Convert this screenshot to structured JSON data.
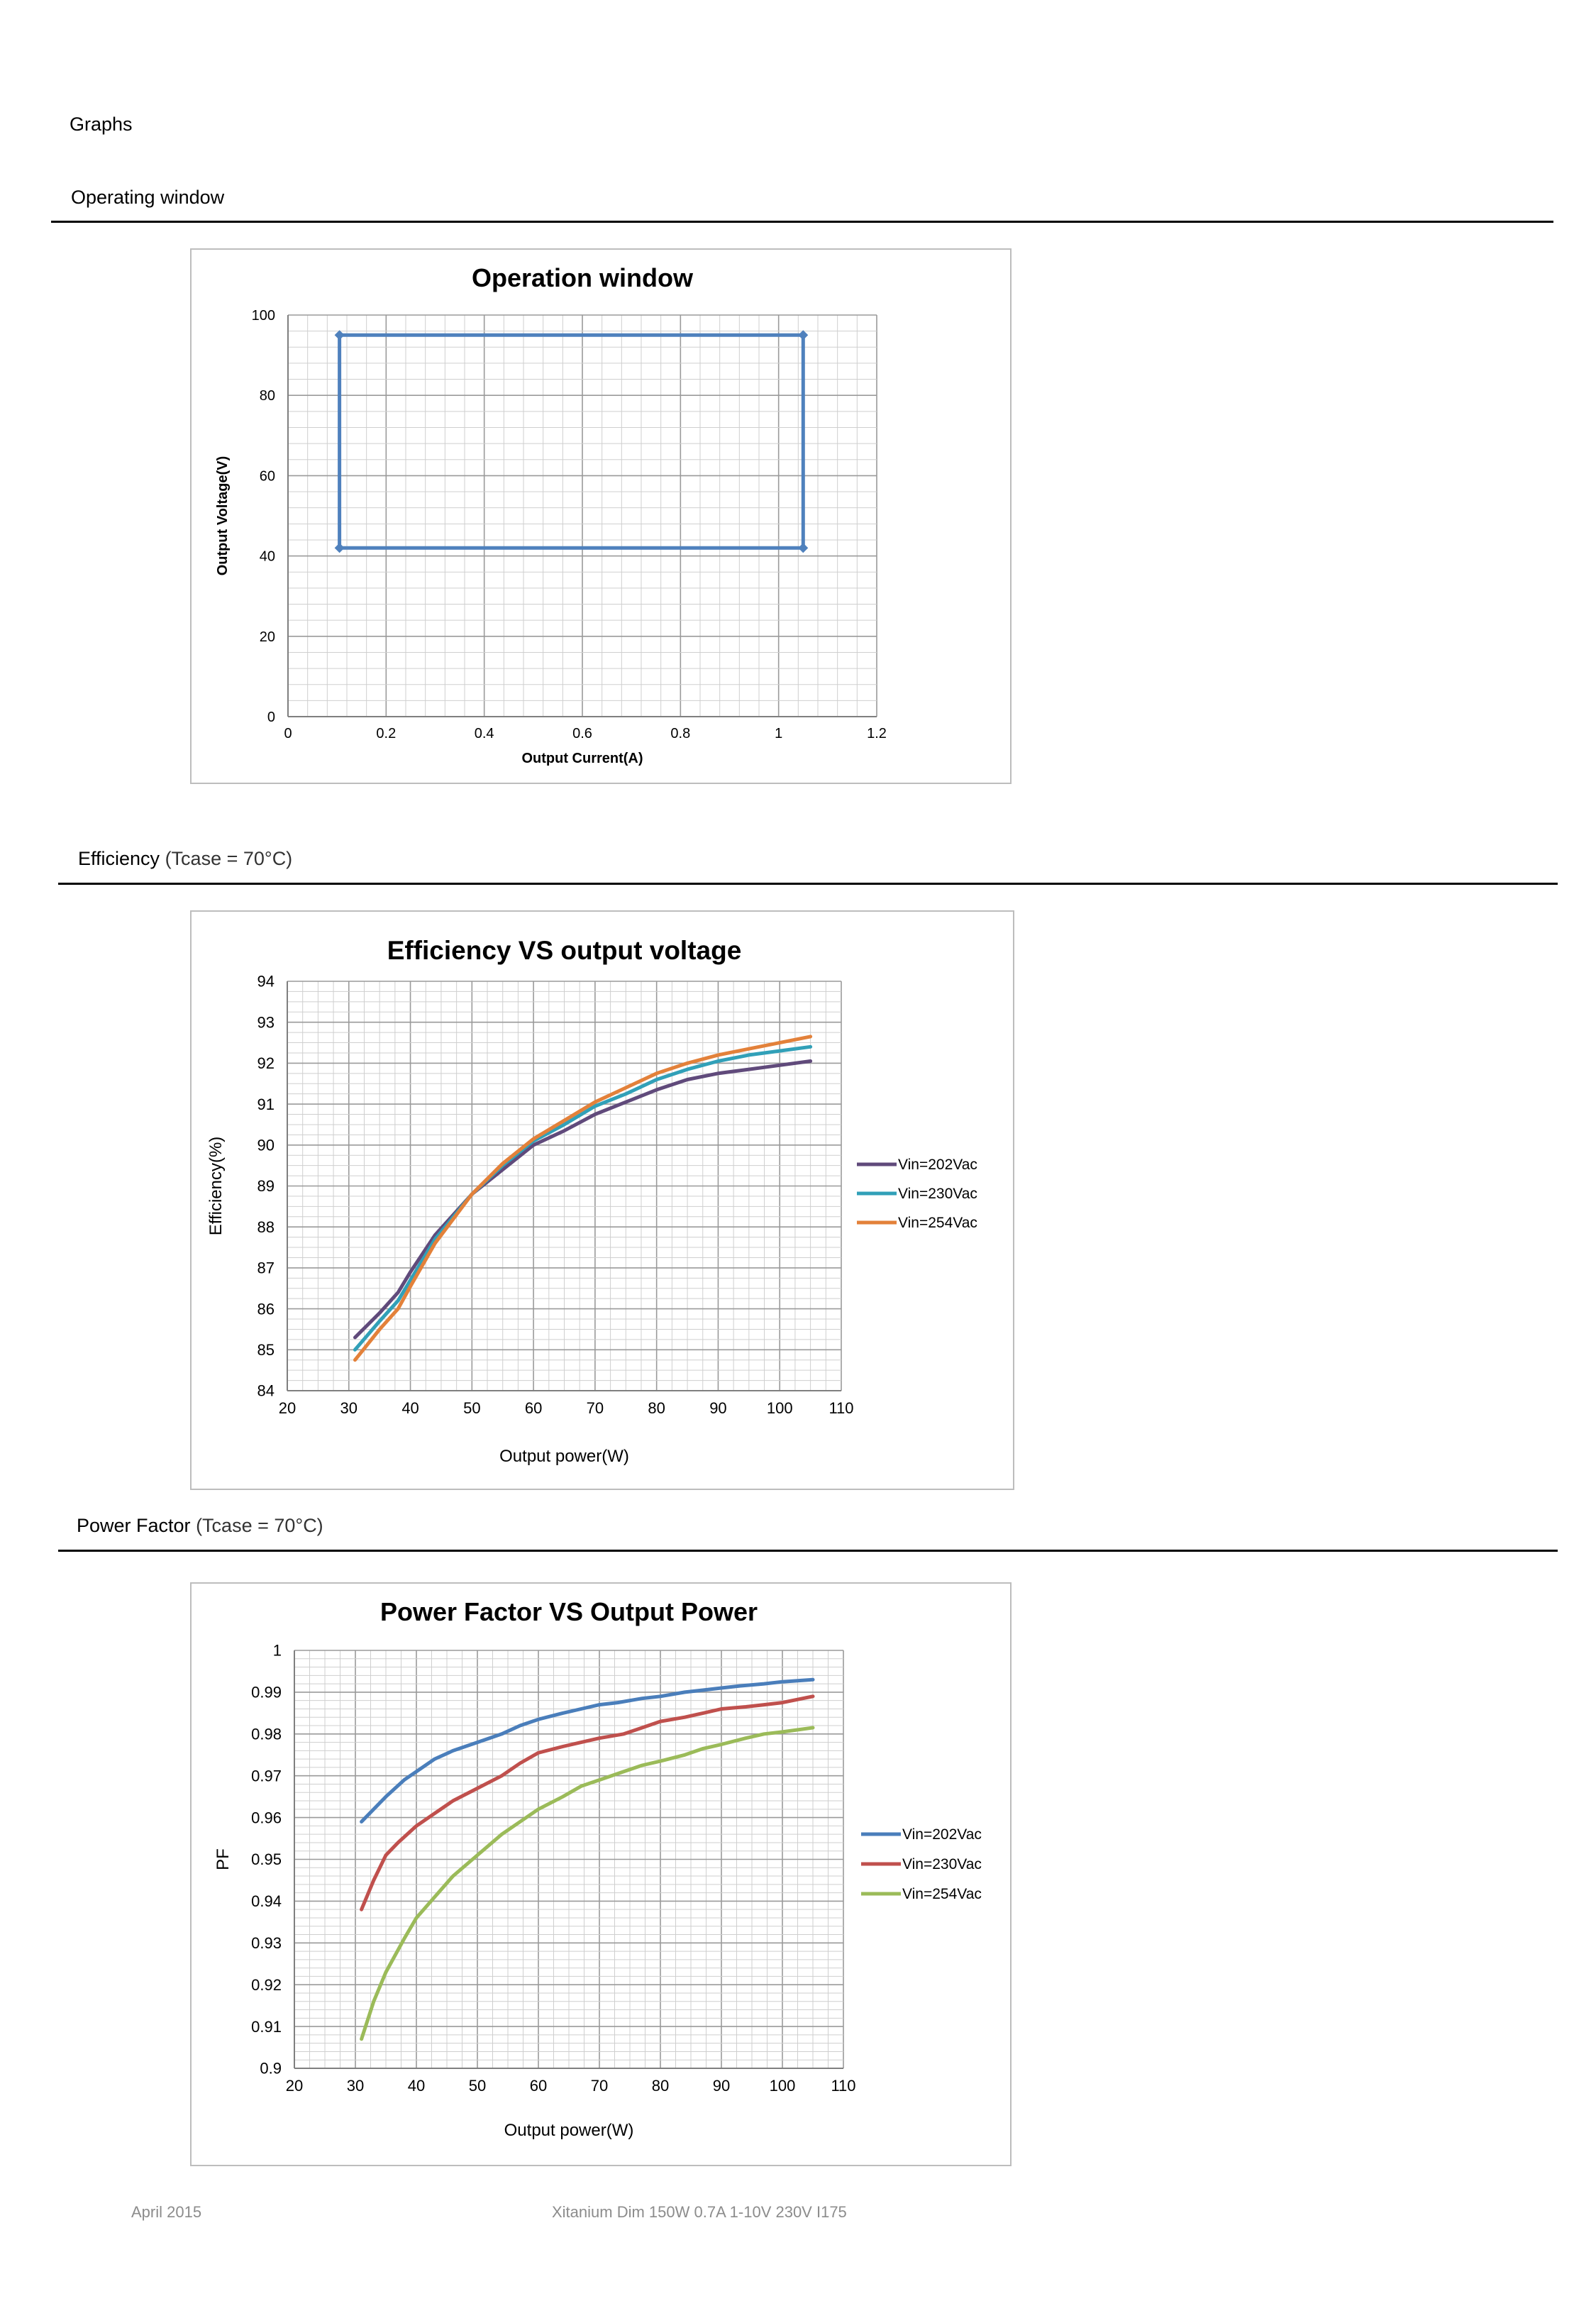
{
  "page": {
    "section_title": "Graphs",
    "sections": [
      {
        "title": "Operating window",
        "subtitle": ""
      },
      {
        "title": "Efficiency",
        "subtitle": " (Tcase = 70°C)"
      },
      {
        "title": "Power Factor",
        "subtitle": " (Tcase = 70°C)"
      }
    ],
    "footer": {
      "date": "April 2015",
      "product": "Xitanium Dim 150W 0.7A 1-10V 230V I175"
    }
  },
  "chart_data": [
    {
      "type": "line",
      "title": "Operation window",
      "xlabel": "Output Current(A)",
      "ylabel": "Output Voltage(V)",
      "xlim": [
        0,
        1.2
      ],
      "ylim": [
        0,
        100
      ],
      "xticks": [
        0,
        0.2,
        0.4,
        0.6,
        0.8,
        1,
        1.2
      ],
      "xtick_labels": [
        "0",
        "0.2",
        "0.4",
        "0.6",
        "0.8",
        "1",
        "1.2"
      ],
      "yticks": [
        0,
        20,
        40,
        60,
        80,
        100
      ],
      "ytick_labels": [
        "0",
        "20",
        "40",
        "60",
        "80",
        "100"
      ],
      "grid": true,
      "legend": "none",
      "series": [
        {
          "name": "",
          "color": "#4f81bd",
          "x": [
            0.105,
            1.05,
            1.05,
            0.105,
            0.105
          ],
          "y": [
            95,
            95,
            42,
            42,
            95
          ]
        }
      ]
    },
    {
      "type": "line",
      "title": "Efficiency VS output voltage",
      "xlabel": "Output power(W)",
      "ylabel": "Efficiency(%)",
      "xlim": [
        20,
        110
      ],
      "ylim": [
        84,
        94
      ],
      "xticks": [
        20,
        30,
        40,
        50,
        60,
        70,
        80,
        90,
        100,
        110
      ],
      "xtick_labels": [
        "20",
        "30",
        "40",
        "50",
        "60",
        "70",
        "80",
        "90",
        "100",
        "110"
      ],
      "yticks": [
        84,
        85,
        86,
        87,
        88,
        89,
        90,
        91,
        92,
        93,
        94
      ],
      "ytick_labels": [
        "84",
        "85",
        "86",
        "87",
        "88",
        "89",
        "90",
        "91",
        "92",
        "93",
        "94"
      ],
      "grid": true,
      "legend": "right",
      "series": [
        {
          "name": "Vin=202Vac",
          "color": "#604a7b",
          "x": [
            31,
            35,
            38,
            40,
            44,
            50,
            55,
            60,
            65,
            70,
            75,
            80,
            85,
            90,
            95,
            100,
            105
          ],
          "y": [
            85.3,
            85.9,
            86.4,
            86.9,
            87.8,
            88.8,
            89.4,
            90.0,
            90.35,
            90.75,
            91.05,
            91.35,
            91.6,
            91.75,
            91.85,
            91.95,
            92.05
          ]
        },
        {
          "name": "Vin=230Vac",
          "color": "#31a0b8",
          "x": [
            31,
            35,
            38,
            40,
            44,
            50,
            55,
            60,
            65,
            70,
            75,
            80,
            85,
            90,
            95,
            100,
            105
          ],
          "y": [
            85.0,
            85.7,
            86.2,
            86.7,
            87.7,
            88.8,
            89.5,
            90.1,
            90.5,
            90.95,
            91.25,
            91.6,
            91.85,
            92.05,
            92.2,
            92.3,
            92.4
          ]
        },
        {
          "name": "Vin=254Vac",
          "color": "#e3813a",
          "x": [
            31,
            35,
            38,
            40,
            44,
            50,
            55,
            60,
            65,
            70,
            75,
            80,
            85,
            90,
            95,
            100,
            105
          ],
          "y": [
            84.75,
            85.5,
            86.0,
            86.55,
            87.6,
            88.8,
            89.55,
            90.15,
            90.6,
            91.05,
            91.4,
            91.75,
            92.0,
            92.2,
            92.35,
            92.5,
            92.65
          ]
        }
      ]
    },
    {
      "type": "line",
      "title": "Power Factor VS Output Power",
      "xlabel": "Output power(W)",
      "ylabel": "PF",
      "xlim": [
        20,
        110
      ],
      "ylim": [
        0.9,
        1
      ],
      "xticks": [
        20,
        30,
        40,
        50,
        60,
        70,
        80,
        90,
        100,
        110
      ],
      "xtick_labels": [
        "20",
        "30",
        "40",
        "50",
        "60",
        "70",
        "80",
        "90",
        "100",
        "110"
      ],
      "yticks": [
        0.9,
        0.91,
        0.92,
        0.93,
        0.94,
        0.95,
        0.96,
        0.97,
        0.98,
        0.99,
        1
      ],
      "ytick_labels": [
        "0.9",
        "0.91",
        "0.92",
        "0.93",
        "0.94",
        "0.95",
        "0.96",
        "0.97",
        "0.98",
        "0.99",
        "1"
      ],
      "grid": true,
      "legend": "right",
      "series": [
        {
          "name": "Vin=202Vac",
          "color": "#4a7ebb",
          "x": [
            31,
            35,
            38,
            40,
            43,
            46,
            50,
            54,
            57,
            60,
            64,
            67,
            70,
            73,
            77,
            80,
            84,
            87,
            90,
            93,
            97,
            100,
            105
          ],
          "y": [
            0.959,
            0.965,
            0.969,
            0.971,
            0.974,
            0.976,
            0.978,
            0.98,
            0.982,
            0.9835,
            0.985,
            0.986,
            0.987,
            0.9875,
            0.9885,
            0.989,
            0.99,
            0.9905,
            0.991,
            0.9915,
            0.992,
            0.9925,
            0.993
          ]
        },
        {
          "name": "Vin=230Vac",
          "color": "#c0504d",
          "x": [
            31,
            33,
            35,
            37,
            40,
            43,
            46,
            50,
            54,
            57,
            60,
            64,
            67,
            70,
            74,
            77,
            80,
            84,
            87,
            90,
            94,
            97,
            100,
            105
          ],
          "y": [
            0.938,
            0.945,
            0.951,
            0.954,
            0.958,
            0.961,
            0.964,
            0.967,
            0.97,
            0.973,
            0.9755,
            0.977,
            0.978,
            0.979,
            0.98,
            0.9815,
            0.983,
            0.984,
            0.985,
            0.986,
            0.9865,
            0.987,
            0.9875,
            0.989
          ]
        },
        {
          "name": "Vin=254Vac",
          "color": "#9bbb59",
          "x": [
            31,
            33,
            35,
            38,
            40,
            43,
            46,
            50,
            54,
            57,
            60,
            64,
            67,
            70,
            74,
            77,
            80,
            84,
            87,
            90,
            94,
            97,
            100,
            105
          ],
          "y": [
            0.907,
            0.916,
            0.923,
            0.931,
            0.936,
            0.941,
            0.946,
            0.951,
            0.956,
            0.959,
            0.962,
            0.965,
            0.9675,
            0.969,
            0.971,
            0.9725,
            0.9735,
            0.975,
            0.9765,
            0.9775,
            0.979,
            0.98,
            0.9805,
            0.9815
          ]
        }
      ]
    }
  ]
}
